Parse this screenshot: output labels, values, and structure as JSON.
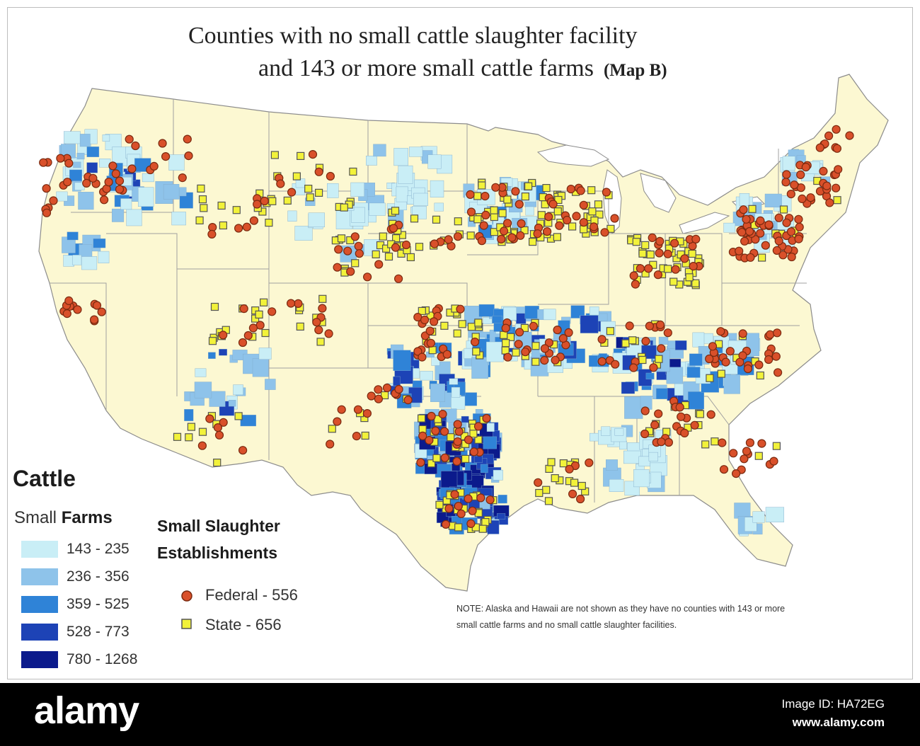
{
  "title": {
    "line1": "Counties with no small cattle slaughter facility",
    "line2": "and 143 or more small cattle farms",
    "tag": "(Map B)"
  },
  "legend": {
    "heading": "Cattle",
    "farms_heading_prefix": "Small",
    "farms_heading_bold": "Farms",
    "ranges": [
      {
        "label": "143 - 235",
        "color": "#c9eef6"
      },
      {
        "label": "236 - 356",
        "color": "#8ec3ea"
      },
      {
        "label": "359 - 525",
        "color": "#2f83d7"
      },
      {
        "label": "528 - 773",
        "color": "#1d43b6"
      },
      {
        "label": "780 - 1268",
        "color": "#0b1a8c"
      }
    ],
    "slaughter_heading_line1": "Small Slaughter",
    "slaughter_heading_line2": "Establishments",
    "markers": [
      {
        "label": "Federal - 556",
        "shape": "circle",
        "color": "#d9502a"
      },
      {
        "label": "State - 656",
        "shape": "square",
        "color": "#f2f23a"
      }
    ]
  },
  "note": "NOTE:  Alaska and Hawaii are not shown as they have no counties with 143 or more small cattle farms and no small cattle slaughter facilities.",
  "map": {
    "land_color": "#fcf8d2",
    "border_color": "#8c8c8c"
  },
  "footer": {
    "logo": "alamy",
    "image_id": "Image ID: HA72EG",
    "url": "www.alamy.com"
  }
}
